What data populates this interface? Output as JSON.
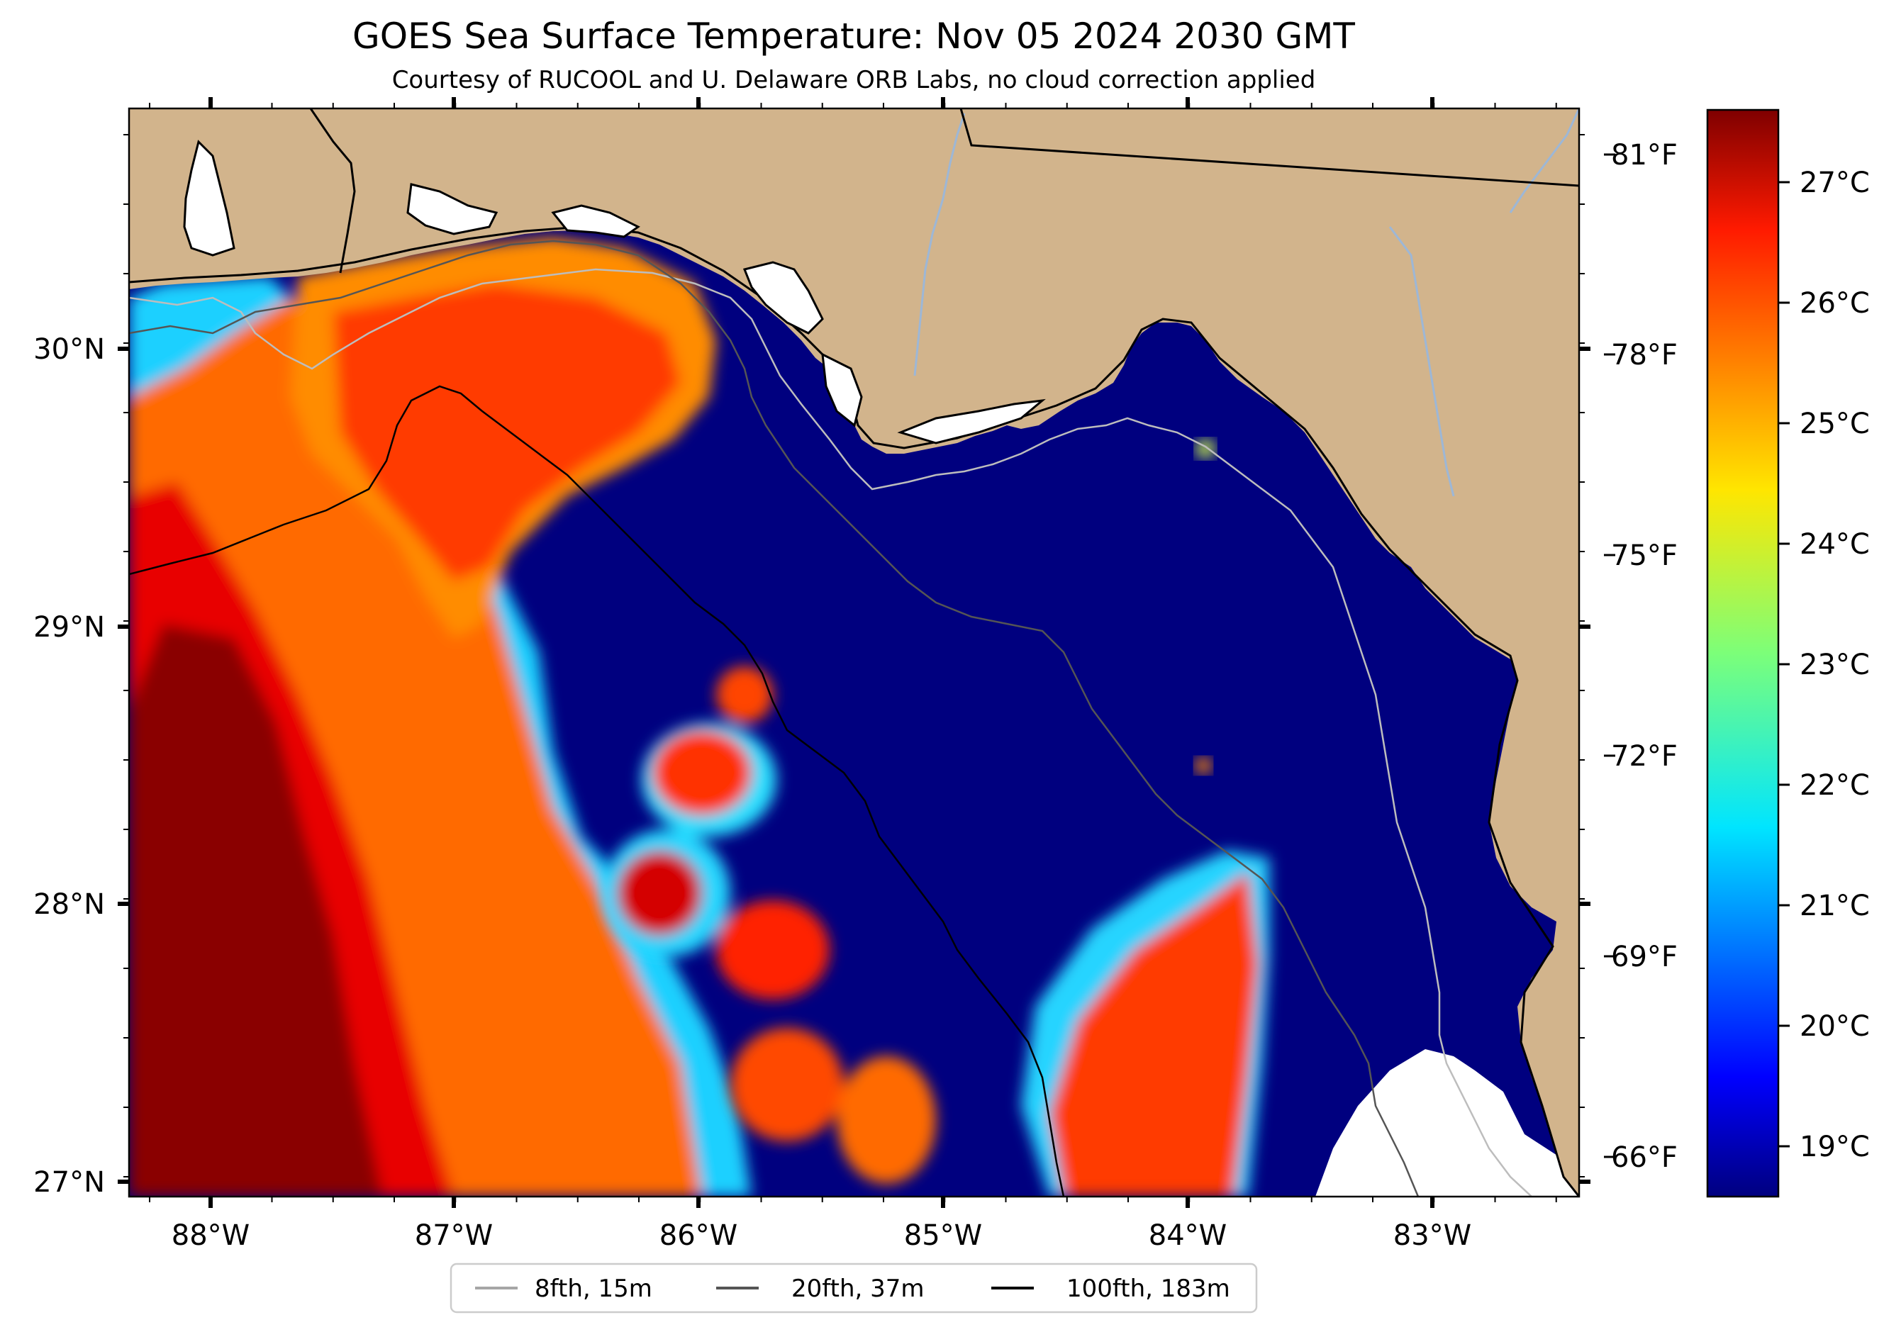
{
  "title": "GOES Sea Surface Temperature: Nov 05 2024 2030 GMT",
  "subtitle": "Courtesy of RUCOOL and U. Delaware ORB Labs, no cloud correction applied",
  "axes": {
    "lon_ticks": [
      "88°W",
      "87°W",
      "86°W",
      "85°W",
      "84°W",
      "83°W"
    ],
    "lat_ticks": [
      "30°N",
      "29°N",
      "28°N",
      "27°N"
    ],
    "lon_range": [
      -88.33,
      -82.38
    ],
    "lat_range": [
      26.93,
      30.85
    ]
  },
  "fahrenheit_ticks": [
    "81°F",
    "78°F",
    "75°F",
    "72°F",
    "69°F",
    "66°F"
  ],
  "colorbar": {
    "labels": [
      "27°C",
      "26°C",
      "25°C",
      "24°C",
      "23°C",
      "22°C",
      "21°C",
      "20°C",
      "19°C"
    ],
    "colormap": "jet",
    "range_c": [
      18.6,
      27.6
    ]
  },
  "legend": [
    {
      "label": "8fth, 15m",
      "color": "#a6a6a6"
    },
    {
      "label": "20fth, 37m",
      "color": "#555555"
    },
    {
      "label": "100fth, 183m",
      "color": "#000000"
    }
  ],
  "colors": {
    "land": "#d2b48c",
    "cold_water": "#00007f",
    "no_data": "#ffffff",
    "river": "#9db7d6",
    "coastline": "#000000"
  }
}
